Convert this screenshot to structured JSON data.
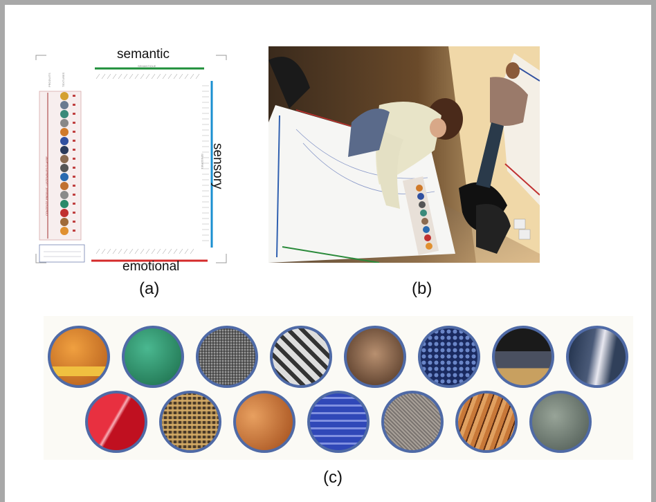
{
  "panel_a": {
    "label_top": "semantic",
    "label_right": "sensory",
    "label_bottom": "emotional",
    "small_header_top": "SEMANTIQUE",
    "small_header_right": "SENSORIEL",
    "small_header_bottom": "EMOTIONNEL",
    "col_headers": [
      "PRODUITS",
      "TEXTURES"
    ],
    "side_label": "CONTEXTE PRODUIT : USTENSILES CLASSE"
  },
  "captions": {
    "a": "(a)",
    "b": "(b)",
    "c": "(c)"
  },
  "colors": {
    "semantic_bar": "#1f8f3a",
    "sensory_bar": "#1a8fd0",
    "emotional_bar": "#d42a2a",
    "circle_border": "#4f6aa6"
  },
  "texture_circles_row1": [
    "orange sponge",
    "green fibers",
    "metal mesh",
    "woven metal",
    "brown leather",
    "blue dimpled fabric",
    "black roll",
    "brushed metal"
  ],
  "texture_circles_row2": [
    "red glossy",
    "woven straw",
    "cork",
    "blue knit",
    "grey canvas",
    "wood grain",
    "slate"
  ]
}
